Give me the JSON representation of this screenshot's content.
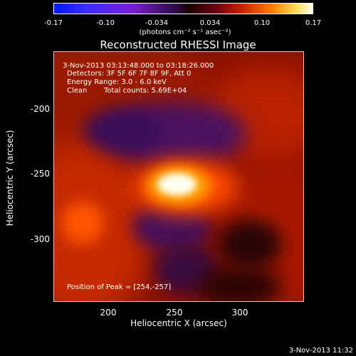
{
  "chart_data": {
    "type": "heatmap",
    "title": "Reconstructed RHESSI Image",
    "colorbar": {
      "ticks": [
        "-0.17",
        "-0.10",
        "-0.034",
        "0.034",
        "0.10",
        "0.17"
      ],
      "range": [
        -0.17,
        0.17
      ],
      "unit": "(photons cm⁻² s⁻¹ asec⁻²)"
    },
    "xlabel": "Heliocentric X (arcsec)",
    "ylabel": "Heliocentric Y (arcsec)",
    "x_ticks": [
      "200",
      "250",
      "300"
    ],
    "y_ticks": [
      "-200",
      "-250",
      "-300"
    ],
    "xlim": [
      160,
      350
    ],
    "ylim": [
      -355,
      -165
    ],
    "peak": {
      "x": 254,
      "y": -257,
      "value": 0.17
    },
    "annotations": {
      "time": "3-Nov-2013 03:13:48.000 to 03:18:26.000",
      "detectors": "Detectors: 3F 5F 6F 7F 8F 9F, Att 0",
      "energy": "Energy Range: 3.0 - 6.0 keV",
      "clean": "Clean",
      "counts": "Total counts: 5.69E+04",
      "peak_position": "Position of Peak = [254,-257]"
    },
    "colors": {
      "max": "#fffff0",
      "min": "#0018ff"
    }
  },
  "footer": {
    "timestamp": "3-Nov-2013 11:32"
  }
}
